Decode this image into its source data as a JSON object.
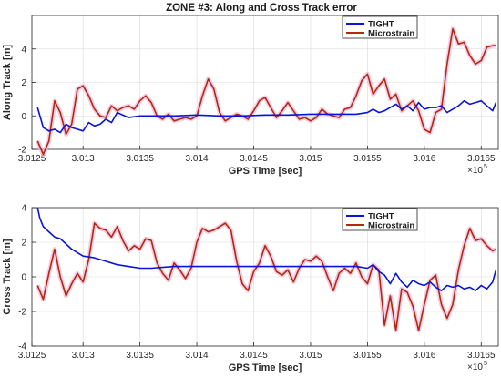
{
  "chart_data": [
    {
      "type": "line",
      "title": "ZONE #3: Along and Cross Track error",
      "xlabel": "GPS Time [sec]",
      "ylabel": "Along Track [m]",
      "x_exponent_base": "×10",
      "x_exponent_power": "5",
      "xlim": [
        3.01255,
        3.01665
      ],
      "ylim": [
        -2,
        6
      ],
      "xticks": [
        3.0125,
        3.013,
        3.0135,
        3.014,
        3.0145,
        3.015,
        3.0155,
        3.016,
        3.0165
      ],
      "xticklabels": [
        "3.0125",
        "3.013",
        "3.0135",
        "3.014",
        "3.0145",
        "3.015",
        "3.0155",
        "3.016",
        "3.0165"
      ],
      "yticks": [
        -2,
        0,
        2,
        4
      ],
      "yticklabels": [
        "-2",
        "0",
        "2",
        "4"
      ],
      "grid": true,
      "legend_position": "top-right",
      "series": [
        {
          "name": "TIGHT",
          "color": "#0a14d8",
          "x": [
            3.0126,
            3.01265,
            3.0127,
            3.01275,
            3.0128,
            3.01285,
            3.0129,
            3.01295,
            3.013,
            3.01305,
            3.0131,
            3.01315,
            3.0132,
            3.01325,
            3.0133,
            3.0134,
            3.0135,
            3.0136,
            3.0138,
            3.014,
            3.0142,
            3.0144,
            3.0146,
            3.0148,
            3.015,
            3.0152,
            3.0154,
            3.0155,
            3.01555,
            3.0156,
            3.01565,
            3.0157,
            3.01575,
            3.0158,
            3.01585,
            3.0159,
            3.01595,
            3.016,
            3.01605,
            3.0161,
            3.01615,
            3.0162,
            3.01625,
            3.0163,
            3.01635,
            3.0164,
            3.01645,
            3.0165,
            3.01655,
            3.0166,
            3.01663
          ],
          "y": [
            0.5,
            -0.7,
            -0.9,
            -0.8,
            -1.0,
            -0.5,
            -0.7,
            -0.8,
            -0.9,
            -0.4,
            -0.6,
            -0.5,
            -0.2,
            -0.4,
            0.2,
            -0.1,
            0.0,
            0.0,
            0.0,
            0.05,
            0.0,
            0.0,
            0.05,
            0.05,
            0.1,
            0.1,
            0.1,
            0.2,
            0.4,
            0.2,
            0.3,
            0.5,
            0.7,
            0.4,
            0.6,
            0.3,
            0.8,
            0.4,
            0.5,
            0.5,
            0.6,
            0.2,
            0.4,
            0.6,
            0.9,
            0.7,
            0.8,
            0.9,
            0.6,
            0.3,
            0.8
          ]
        },
        {
          "name": "Microstrain",
          "color": "#b02a10",
          "x": [
            3.0126,
            3.01265,
            3.0127,
            3.01275,
            3.0128,
            3.01285,
            3.0129,
            3.01295,
            3.013,
            3.01305,
            3.0131,
            3.01315,
            3.0132,
            3.01325,
            3.0133,
            3.01335,
            3.0134,
            3.01345,
            3.0135,
            3.01355,
            3.0136,
            3.01365,
            3.0137,
            3.01375,
            3.0138,
            3.01385,
            3.0139,
            3.01395,
            3.014,
            3.01405,
            3.0141,
            3.01415,
            3.0142,
            3.01425,
            3.0143,
            3.01435,
            3.0144,
            3.01445,
            3.0145,
            3.01455,
            3.0146,
            3.01465,
            3.0147,
            3.01475,
            3.0148,
            3.01485,
            3.0149,
            3.01495,
            3.015,
            3.01505,
            3.0151,
            3.01515,
            3.0152,
            3.01525,
            3.0153,
            3.01535,
            3.0154,
            3.01545,
            3.0155,
            3.01555,
            3.0156,
            3.01565,
            3.0157,
            3.01575,
            3.0158,
            3.01585,
            3.0159,
            3.01595,
            3.016,
            3.01605,
            3.0161,
            3.01615,
            3.0162,
            3.01625,
            3.0163,
            3.01635,
            3.0164,
            3.01645,
            3.0165,
            3.01655,
            3.0166,
            3.01663
          ],
          "y": [
            -1.5,
            -2.3,
            -1.5,
            0.9,
            0.2,
            -1.1,
            -0.5,
            1.6,
            1.8,
            1.2,
            0.4,
            0.0,
            -0.1,
            0.6,
            0.3,
            0.5,
            0.6,
            0.4,
            0.9,
            1.2,
            0.8,
            0.0,
            -0.2,
            0.1,
            -0.3,
            -0.2,
            -0.1,
            -0.2,
            0.0,
            1.2,
            2.2,
            1.6,
            0.2,
            -0.3,
            -0.1,
            0.1,
            0.0,
            -0.2,
            0.3,
            0.9,
            1.1,
            0.5,
            -0.1,
            0.3,
            0.8,
            0.3,
            -0.2,
            -0.1,
            -0.3,
            -0.1,
            0.4,
            0.1,
            0.0,
            -0.1,
            0.4,
            0.5,
            1.2,
            2.1,
            2.5,
            1.3,
            1.8,
            2.2,
            1.0,
            1.3,
            0.3,
            0.6,
            0.9,
            0.3,
            -0.8,
            -1.0,
            0.2,
            0.4,
            3.1,
            5.2,
            4.3,
            4.4,
            3.6,
            3.1,
            3.3,
            4.1,
            4.2,
            4.2
          ]
        }
      ]
    },
    {
      "type": "line",
      "title": "",
      "xlabel": "GPS Time [sec]",
      "ylabel": "Cross Track [m]",
      "x_exponent_base": "×10",
      "x_exponent_power": "5",
      "xlim": [
        3.01255,
        3.01665
      ],
      "ylim": [
        -4,
        4
      ],
      "xticks": [
        3.0125,
        3.013,
        3.0135,
        3.014,
        3.0145,
        3.015,
        3.0155,
        3.016,
        3.0165
      ],
      "xticklabels": [
        "3.0125",
        "3.013",
        "3.0135",
        "3.014",
        "3.0145",
        "3.015",
        "3.0155",
        "3.016",
        "3.0165"
      ],
      "yticks": [
        -4,
        -2,
        0,
        2,
        4
      ],
      "yticklabels": [
        "-4",
        "-2",
        "0",
        "2",
        "4"
      ],
      "grid": true,
      "legend_position": "top-right",
      "series": [
        {
          "name": "TIGHT",
          "color": "#0a14d8",
          "x": [
            3.0126,
            3.01262,
            3.01265,
            3.0127,
            3.01275,
            3.0128,
            3.01285,
            3.0129,
            3.01295,
            3.013,
            3.0131,
            3.0132,
            3.0133,
            3.0134,
            3.0135,
            3.0136,
            3.0138,
            3.014,
            3.0142,
            3.0144,
            3.0146,
            3.0148,
            3.015,
            3.0152,
            3.0154,
            3.0155,
            3.01555,
            3.0156,
            3.01565,
            3.0157,
            3.01575,
            3.0158,
            3.01585,
            3.0159,
            3.01595,
            3.016,
            3.01605,
            3.0161,
            3.01615,
            3.0162,
            3.01625,
            3.0163,
            3.01635,
            3.0164,
            3.01645,
            3.0165,
            3.01655,
            3.0166,
            3.01663
          ],
          "y": [
            4.0,
            3.4,
            2.9,
            2.6,
            2.3,
            2.2,
            1.9,
            1.6,
            1.4,
            1.2,
            1.1,
            0.9,
            0.7,
            0.6,
            0.5,
            0.5,
            0.6,
            0.6,
            0.6,
            0.6,
            0.6,
            0.6,
            0.6,
            0.6,
            0.6,
            0.5,
            0.7,
            0.3,
            0.1,
            -0.4,
            0.2,
            -0.3,
            -0.6,
            -0.2,
            -0.4,
            -0.5,
            -0.3,
            -0.6,
            -0.8,
            -0.5,
            -0.6,
            -0.5,
            -0.7,
            -0.6,
            -0.8,
            -0.5,
            -0.7,
            -0.3,
            0.4
          ]
        },
        {
          "name": "Microstrain",
          "color": "#b02a10",
          "x": [
            3.0126,
            3.01265,
            3.0127,
            3.01275,
            3.0128,
            3.01285,
            3.0129,
            3.01295,
            3.013,
            3.01305,
            3.0131,
            3.01315,
            3.0132,
            3.01325,
            3.0133,
            3.01335,
            3.0134,
            3.01345,
            3.0135,
            3.01355,
            3.0136,
            3.01365,
            3.0137,
            3.01375,
            3.0138,
            3.01385,
            3.0139,
            3.01395,
            3.014,
            3.01405,
            3.0141,
            3.01415,
            3.0142,
            3.01425,
            3.0143,
            3.01435,
            3.0144,
            3.01445,
            3.0145,
            3.01455,
            3.0146,
            3.01465,
            3.0147,
            3.01475,
            3.0148,
            3.01485,
            3.0149,
            3.01495,
            3.015,
            3.01505,
            3.0151,
            3.01515,
            3.0152,
            3.01525,
            3.0153,
            3.01535,
            3.0154,
            3.01545,
            3.0155,
            3.01555,
            3.0156,
            3.01565,
            3.0157,
            3.01575,
            3.0158,
            3.01585,
            3.0159,
            3.01595,
            3.016,
            3.01605,
            3.0161,
            3.01615,
            3.0162,
            3.01625,
            3.0163,
            3.01635,
            3.0164,
            3.01645,
            3.0165,
            3.01655,
            3.0166,
            3.01663
          ],
          "y": [
            -0.5,
            -1.3,
            0.2,
            1.6,
            0.0,
            -1.1,
            -0.4,
            0.2,
            -0.3,
            1.0,
            3.1,
            2.8,
            2.7,
            2.3,
            2.9,
            2.1,
            1.5,
            1.8,
            1.6,
            2.2,
            2.1,
            0.8,
            0.2,
            -0.2,
            0.8,
            0.4,
            -0.1,
            0.5,
            2.0,
            2.8,
            2.6,
            2.7,
            2.9,
            3.1,
            2.7,
            0.9,
            -0.4,
            -0.8,
            0.3,
            0.8,
            1.8,
            1.2,
            0.3,
            0.1,
            0.4,
            -0.3,
            0.5,
            1.0,
            0.9,
            1.2,
            0.9,
            0.0,
            -0.8,
            0.2,
            0.5,
            0.2,
            0.8,
            0.0,
            -0.4,
            0.7,
            0.4,
            -2.8,
            -1.1,
            -3.1,
            -0.7,
            -0.9,
            -1.7,
            -3.1,
            -1.6,
            -0.2,
            0.1,
            -1.6,
            -2.4,
            -1.6,
            0.4,
            1.8,
            2.8,
            2.1,
            2.2,
            1.8,
            1.5,
            1.6
          ]
        }
      ]
    }
  ]
}
